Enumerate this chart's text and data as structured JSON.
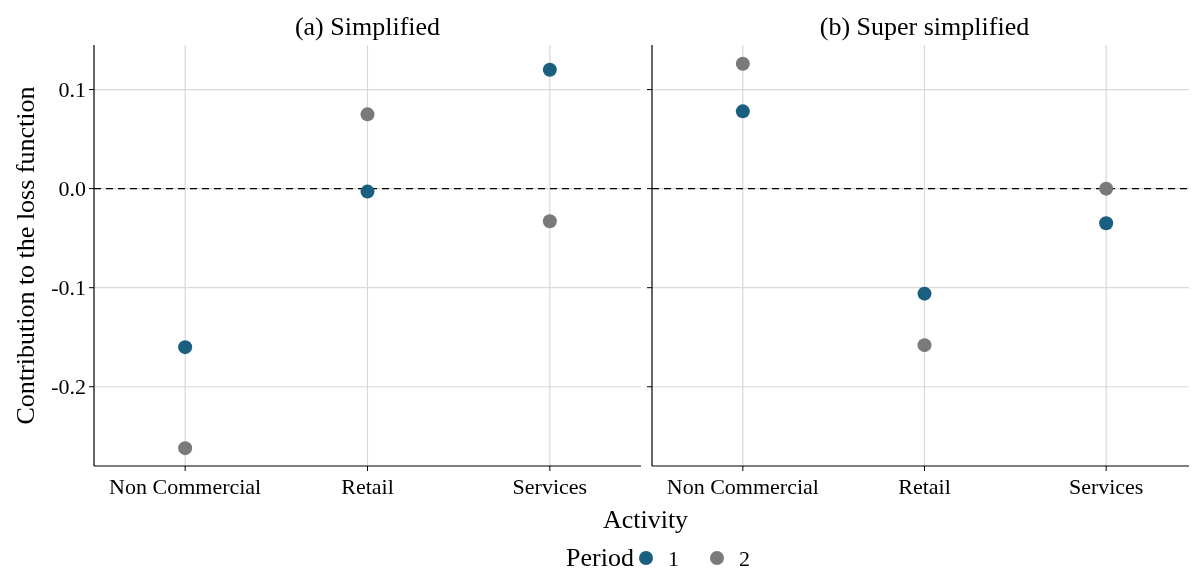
{
  "chart_data": [
    {
      "type": "scatter",
      "title": "(a) Simplified",
      "xlabel": "Activity",
      "ylabel": "Contribution to the loss function",
      "legend_title": "Period",
      "legend": "bottom",
      "categories": [
        "Non Commercial",
        "Retail",
        "Services"
      ],
      "ylim": [
        -0.28,
        0.145
      ],
      "yticks": [
        {
          "value": -0.2,
          "label": "-0.2"
        },
        {
          "value": -0.1,
          "label": "-0.1"
        },
        {
          "value": 0,
          "label": "0.0"
        },
        {
          "value": 0.1,
          "label": "0.1"
        }
      ],
      "grid": true,
      "marker": "circle",
      "ref_lines": [
        {
          "axis": "y",
          "value": 0,
          "line_style": "dashed",
          "color": "#000000"
        }
      ],
      "series": [
        {
          "name": "1",
          "color": "#1b5f80",
          "values": [
            -0.16,
            -0.003,
            0.12
          ]
        },
        {
          "name": "2",
          "color": "#7a7a7a",
          "values": [
            -0.262,
            0.075,
            -0.033
          ]
        }
      ]
    },
    {
      "type": "scatter",
      "title": "(b) Super simplified",
      "categories": [
        "Non Commercial",
        "Retail",
        "Services"
      ],
      "ylim": [
        -0.28,
        0.145
      ],
      "yticks": [
        {
          "value": -0.2,
          "label": null
        },
        {
          "value": -0.1,
          "label": null
        },
        {
          "value": 0,
          "label": null
        },
        {
          "value": 0.1,
          "label": null
        }
      ],
      "tick_labels": "x",
      "grid": true,
      "marker": "circle",
      "ref_lines": [
        {
          "axis": "y",
          "value": 0,
          "line_style": "dashed",
          "color": "#000000"
        }
      ],
      "series": [
        {
          "color": "#1b5f80",
          "values": [
            0.078,
            -0.106,
            -0.035
          ]
        },
        {
          "color": "#7a7a7a",
          "values": [
            0.126,
            -0.158,
            0.0
          ]
        }
      ]
    }
  ]
}
